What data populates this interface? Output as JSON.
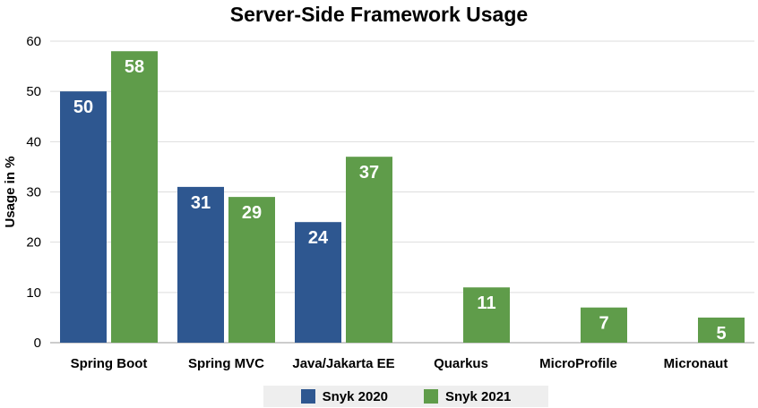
{
  "chart_data": {
    "type": "bar",
    "title": "Server-Side Framework Usage",
    "ylabel": "Usage in %",
    "xlabel": "",
    "ylim": [
      0,
      60
    ],
    "yticks": [
      0,
      10,
      20,
      30,
      40,
      50,
      60
    ],
    "grid": true,
    "legend_position": "bottom",
    "categories": [
      "Spring Boot",
      "Spring MVC",
      "Java/Jakarta EE",
      "Quarkus",
      "MicroProfile",
      "Micronaut"
    ],
    "series": [
      {
        "name": "Snyk 2020",
        "color": "#2e5790",
        "values": [
          50,
          31,
          24,
          null,
          null,
          null
        ]
      },
      {
        "name": "Snyk 2021",
        "color": "#5f9c4a",
        "values": [
          58,
          29,
          37,
          11,
          7,
          5
        ]
      }
    ]
  }
}
